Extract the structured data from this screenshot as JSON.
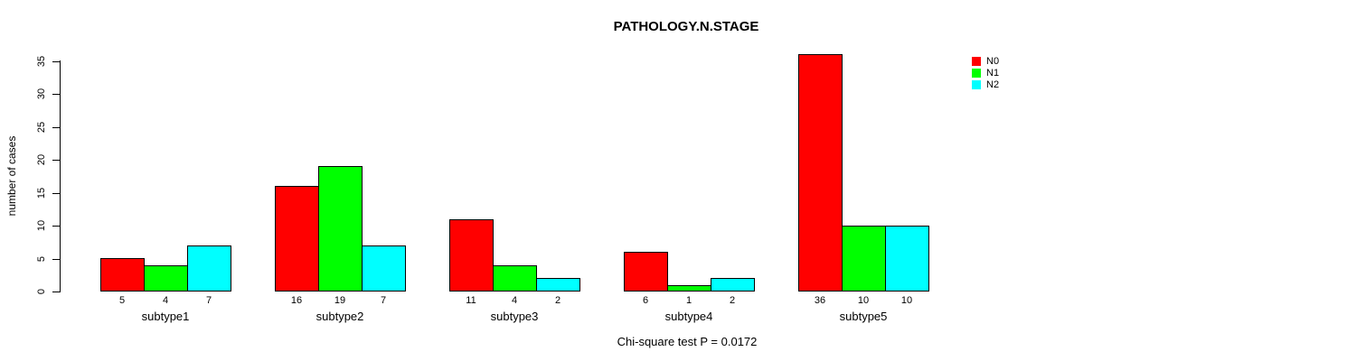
{
  "chart_data": {
    "type": "bar",
    "title": "PATHOLOGY.N.STAGE",
    "ylabel": "number of cases",
    "xlabel": "",
    "annotation": "Chi-square test P = 0.0172",
    "categories": [
      "subtype1",
      "subtype2",
      "subtype3",
      "subtype4",
      "subtype5"
    ],
    "series": [
      {
        "name": "N0",
        "color": "#FF0000",
        "values": [
          5,
          16,
          11,
          6,
          36
        ]
      },
      {
        "name": "N1",
        "color": "#00FF00",
        "values": [
          4,
          19,
          4,
          1,
          10
        ]
      },
      {
        "name": "N2",
        "color": "#00FFFF",
        "values": [
          7,
          7,
          2,
          2,
          10
        ]
      }
    ],
    "bar_value_labels": [
      [
        "5",
        "4",
        "7"
      ],
      [
        "16",
        "19",
        "7"
      ],
      [
        "11",
        "4",
        "2"
      ],
      [
        "6",
        "1",
        "2"
      ],
      [
        "36",
        "10",
        "10"
      ]
    ],
    "ylim": [
      0,
      35
    ],
    "yticks": [
      0,
      5,
      10,
      15,
      20,
      25,
      30,
      35
    ],
    "legend_position": "top-right",
    "legend_entries": [
      "N0",
      "N1",
      "N2"
    ],
    "grid": false
  }
}
